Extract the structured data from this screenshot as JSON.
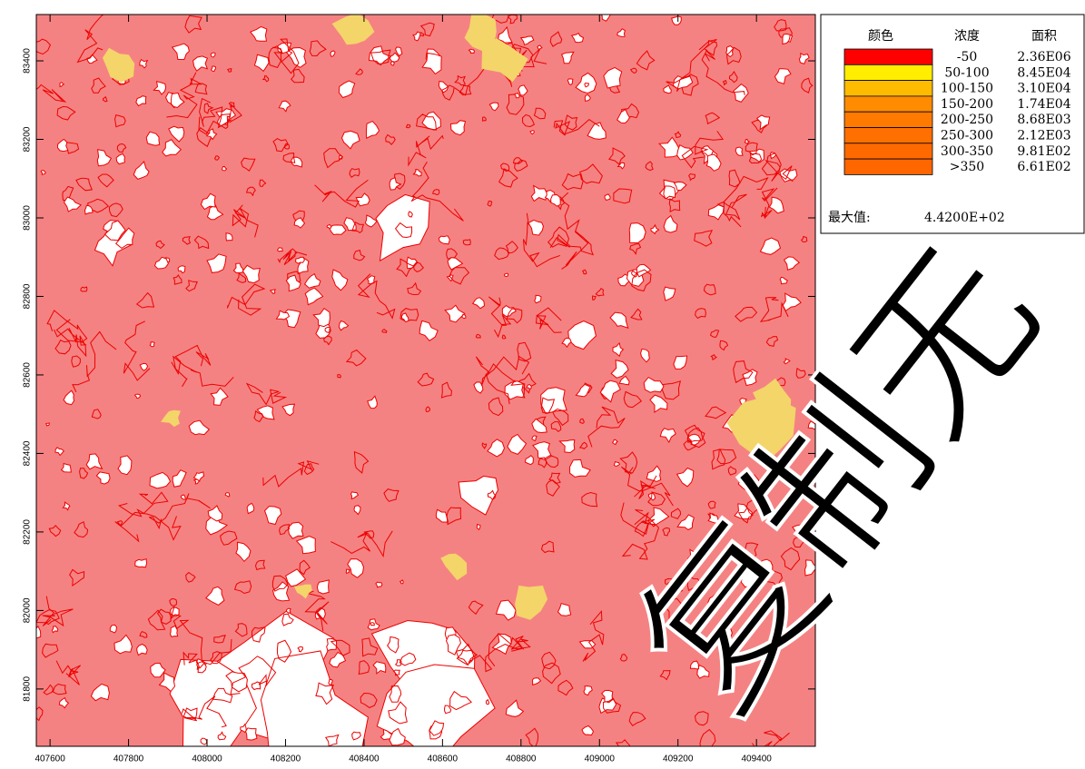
{
  "map": {
    "xlim": [
      407565,
      409550
    ],
    "ylim": [
      81654,
      83518
    ],
    "xticks": [
      407600,
      407800,
      408000,
      408200,
      408400,
      408600,
      408800,
      409000,
      409200,
      409400
    ],
    "yticks": [
      81800,
      82000,
      82200,
      82400,
      82600,
      82800,
      83000,
      83200,
      83400
    ]
  },
  "legend": {
    "headers": [
      "颜色",
      "浓度",
      "面积"
    ],
    "rows": [
      {
        "color": "#ff0000",
        "range": "-50",
        "area": "2.36E06"
      },
      {
        "color": "#ffee00",
        "range": "50-100",
        "area": "8.45E04"
      },
      {
        "color": "#ffbb00",
        "range": "100-150",
        "area": "3.10E04"
      },
      {
        "color": "#ff8c00",
        "range": "150-200",
        "area": "1.74E04"
      },
      {
        "color": "#ff7a00",
        "range": "200-250",
        "area": "8.68E03"
      },
      {
        "color": "#ff7000",
        "range": "250-300",
        "area": "2.12E03"
      },
      {
        "color": "#ff6a00",
        "range": "300-350",
        "area": "9.81E02"
      },
      {
        "color": "#ff6600",
        "range": ">350",
        "area": "6.61E02"
      }
    ],
    "max_label": "最大值:",
    "max_value": "4.4200E+02"
  },
  "watermark": "复制无"
}
